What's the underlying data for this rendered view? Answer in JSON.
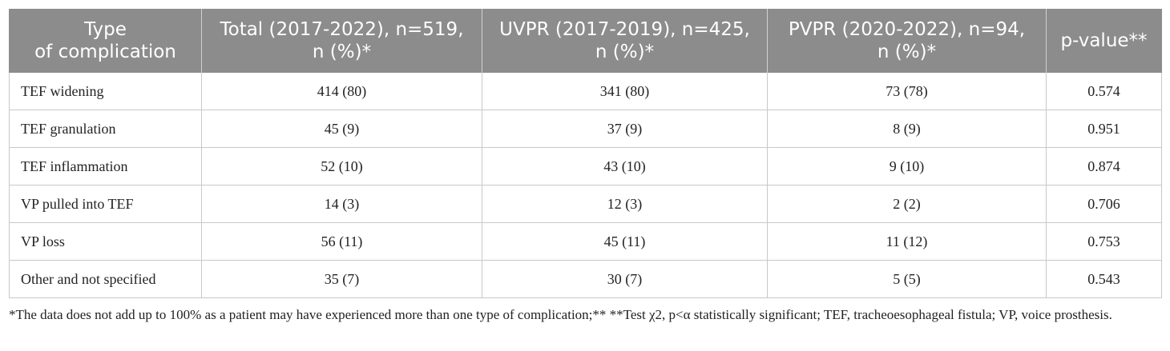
{
  "table": {
    "headers": [
      [
        "Type",
        "of complication"
      ],
      [
        "Total (2017-2022), n=519,",
        "n (%)*"
      ],
      [
        "UVPR (2017-2019), n=425,",
        "n (%)*"
      ],
      [
        "PVPR (2020-2022), n=94,",
        "n (%)*"
      ],
      [
        "p-value**"
      ]
    ],
    "rows": [
      [
        "TEF widening",
        "414 (80)",
        "341 (80)",
        "73 (78)",
        "0.574"
      ],
      [
        "TEF granulation",
        "45 (9)",
        "37 (9)",
        "8 (9)",
        "0.951"
      ],
      [
        "TEF inflammation",
        "52 (10)",
        "43 (10)",
        "9 (10)",
        "0.874"
      ],
      [
        "VP pulled into TEF",
        "14 (3)",
        "12 (3)",
        "2 (2)",
        "0.706"
      ],
      [
        "VP loss",
        "56 (11)",
        "45 (11)",
        "11 (12)",
        "0.753"
      ],
      [
        "Other and not specified",
        "35 (7)",
        "30 (7)",
        "5 (5)",
        "0.543"
      ]
    ]
  },
  "footnote": "*The data does not add up to 100% as a patient may have experienced more than one type of complication;** **Test χ2, p<α statistically significant; TEF, tracheoesophageal fistula; VP, voice prosthesis.",
  "colors": {
    "header_bg": "#8c8c8c",
    "header_text": "#ffffff",
    "border": "#c8c8c8"
  }
}
